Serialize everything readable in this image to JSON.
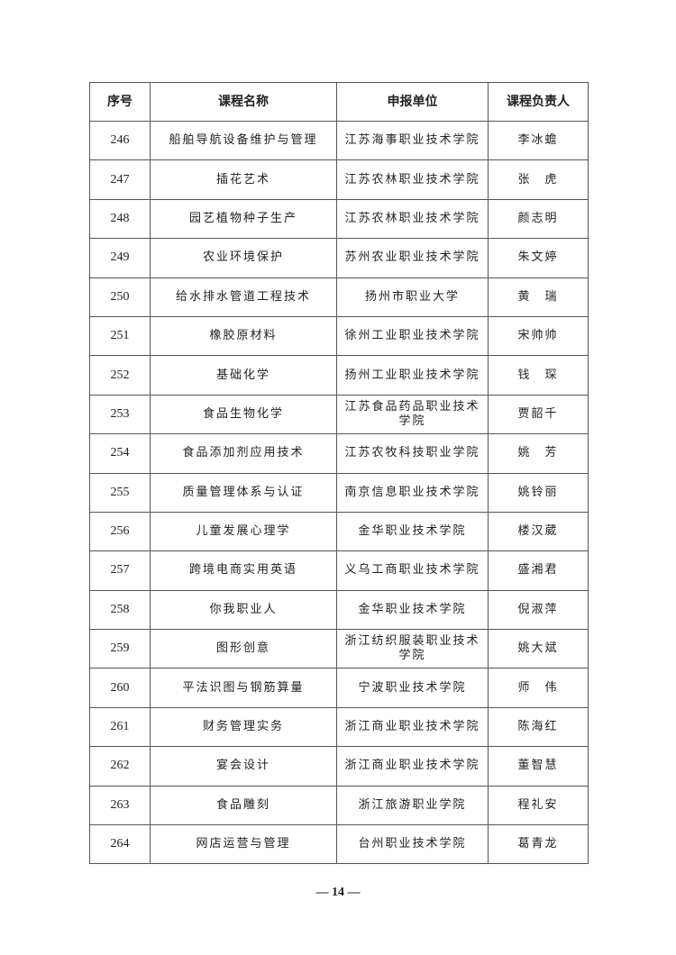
{
  "table": {
    "headers": [
      "序号",
      "课程名称",
      "申报单位",
      "课程负责人"
    ],
    "rows": [
      [
        "246",
        "船舶导航设备维护与管理",
        "江苏海事职业技术学院",
        "李冰蟾"
      ],
      [
        "247",
        "插花艺术",
        "江苏农林职业技术学院",
        "张　虎"
      ],
      [
        "248",
        "园艺植物种子生产",
        "江苏农林职业技术学院",
        "颜志明"
      ],
      [
        "249",
        "农业环境保护",
        "苏州农业职业技术学院",
        "朱文婷"
      ],
      [
        "250",
        "给水排水管道工程技术",
        "扬州市职业大学",
        "黄　瑞"
      ],
      [
        "251",
        "橡胶原材料",
        "徐州工业职业技术学院",
        "宋帅帅"
      ],
      [
        "252",
        "基础化学",
        "扬州工业职业技术学院",
        "钱　琛"
      ],
      [
        "253",
        "食品生物化学",
        "江苏食品药品职业技术学院",
        "贾韶千"
      ],
      [
        "254",
        "食品添加剂应用技术",
        "江苏农牧科技职业学院",
        "姚　芳"
      ],
      [
        "255",
        "质量管理体系与认证",
        "南京信息职业技术学院",
        "姚铃丽"
      ],
      [
        "256",
        "儿童发展心理学",
        "金华职业技术学院",
        "楼汉葳"
      ],
      [
        "257",
        "跨境电商实用英语",
        "义乌工商职业技术学院",
        "盛湘君"
      ],
      [
        "258",
        "你我职业人",
        "金华职业技术学院",
        "倪淑萍"
      ],
      [
        "259",
        "图形创意",
        "浙江纺织服装职业技术学院",
        "姚大斌"
      ],
      [
        "260",
        "平法识图与钢筋算量",
        "宁波职业技术学院",
        "师　伟"
      ],
      [
        "261",
        "财务管理实务",
        "浙江商业职业技术学院",
        "陈海红"
      ],
      [
        "262",
        "宴会设计",
        "浙江商业职业技术学院",
        "董智慧"
      ],
      [
        "263",
        "食品雕刻",
        "浙江旅游职业学院",
        "程礼安"
      ],
      [
        "264",
        "网店运营与管理",
        "台州职业技术学院",
        "葛青龙"
      ]
    ]
  },
  "footer": {
    "page_number": "— 14 —"
  }
}
